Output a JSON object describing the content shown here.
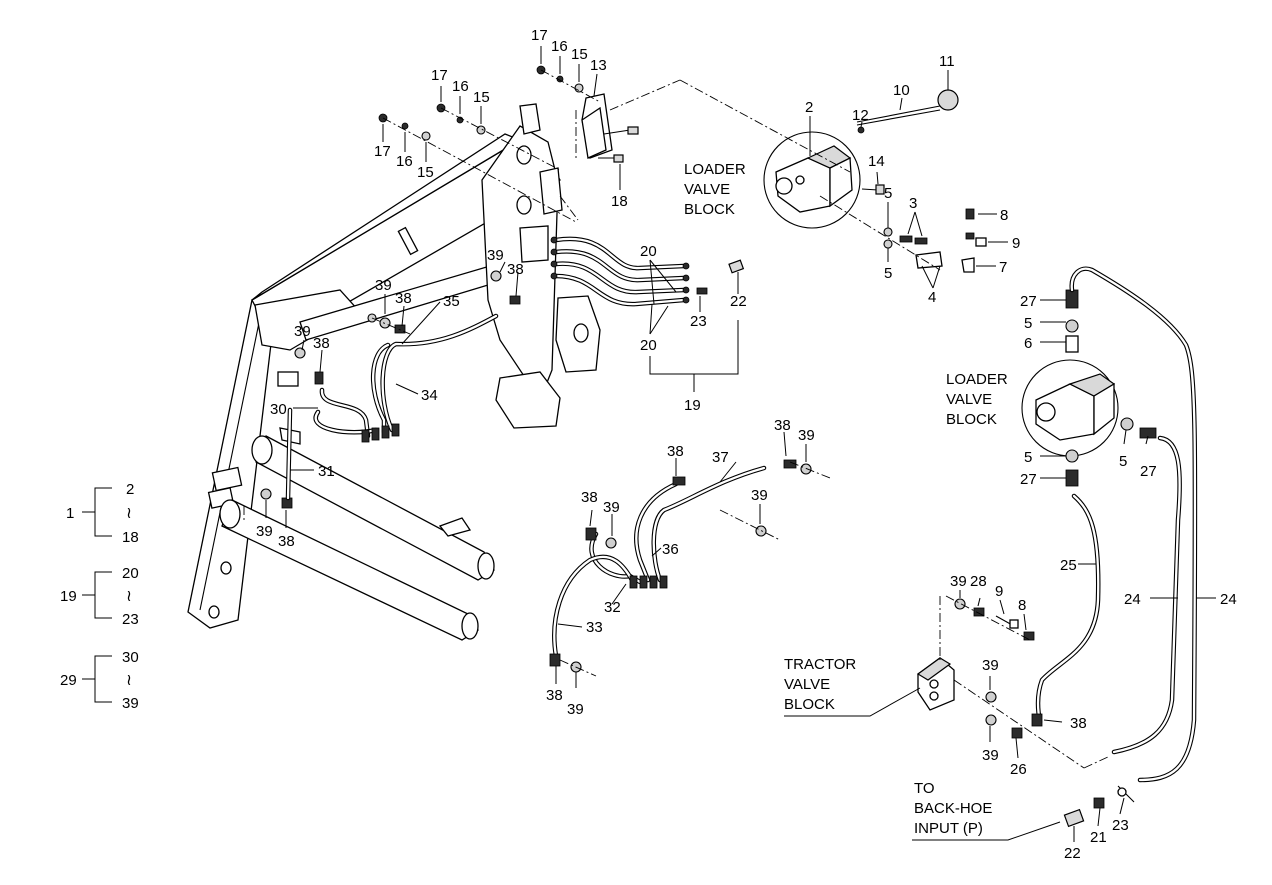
{
  "callouts": {
    "c1": "1",
    "c2": "2",
    "c3": "3",
    "c4": "4",
    "c5": "5",
    "c6": "6",
    "c7": "7",
    "c8": "8",
    "c9": "9",
    "c10": "10",
    "c11": "11",
    "c12": "12",
    "c13": "13",
    "c14": "14",
    "c15": "15",
    "c16": "16",
    "c17": "17",
    "c18": "18",
    "c19": "19",
    "c20": "20",
    "c21": "21",
    "c22": "22",
    "c23": "23",
    "c24": "24",
    "c25": "25",
    "c26": "26",
    "c27": "27",
    "c28": "28",
    "c29": "29",
    "c30": "30",
    "c31": "31",
    "c32": "32",
    "c33": "33",
    "c34": "34",
    "c35": "35",
    "c36": "36",
    "c37": "37",
    "c38": "38",
    "c39": "39"
  },
  "group_keys": [
    {
      "parent": "1",
      "from": "2",
      "to": "18"
    },
    {
      "parent": "19",
      "from": "20",
      "to": "23"
    },
    {
      "parent": "29",
      "from": "30",
      "to": "39"
    }
  ],
  "range_symbol": "≀",
  "labels": {
    "loader_valve_block_top": [
      "LOADER",
      "VALVE",
      "BLOCK"
    ],
    "loader_valve_block_right": [
      "LOADER",
      "VALVE",
      "BLOCK"
    ],
    "tractor_valve_block": [
      "TRACTOR",
      "VALVE",
      "BLOCK"
    ],
    "backhoe_input": [
      "TO",
      "BACK-HOE",
      "INPUT (P)"
    ]
  }
}
